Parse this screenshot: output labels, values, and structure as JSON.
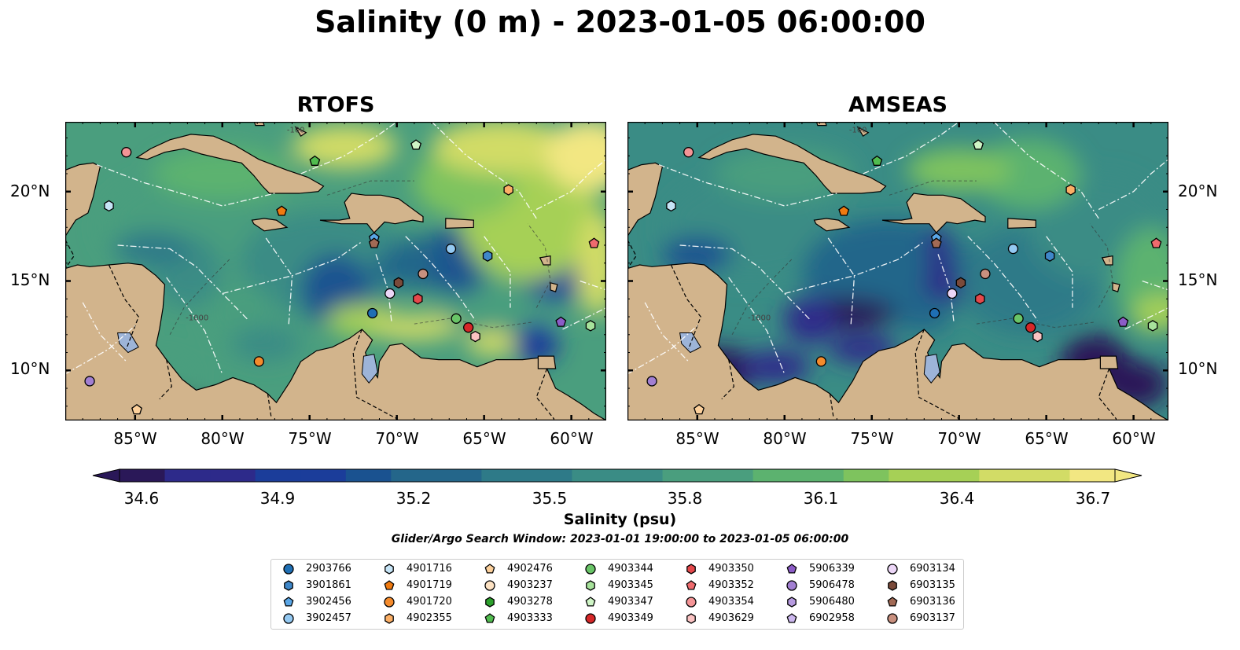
{
  "title": "Salinity (0 m) - 2023-01-05 06:00:00",
  "panels": [
    {
      "title": "RTOFS",
      "ocean_tint": "rtofs"
    },
    {
      "title": "AMSEAS",
      "ocean_tint": "amseas"
    }
  ],
  "map": {
    "lon_range": [
      -89,
      -58
    ],
    "lat_range": [
      7.2,
      23.9
    ],
    "lat_ticks": [
      "10°N",
      "15°N",
      "20°N"
    ],
    "lon_ticks": [
      "85°W",
      "80°W",
      "75°W",
      "70°W",
      "65°W",
      "60°W"
    ],
    "land_color": "#d2b48c",
    "lake_color": "#9db4d8",
    "bathymetry_labels": [
      "-100",
      "-1000"
    ]
  },
  "colorbar": {
    "label": "Salinity (psu)",
    "ticks": [
      "34.6",
      "34.9",
      "35.2",
      "35.5",
      "35.8",
      "36.1",
      "36.4",
      "36.7"
    ],
    "min": 34.6,
    "max": 36.7,
    "colormap": "haline",
    "colors": [
      "#2a1858",
      "#2d2a8a",
      "#1b3d9a",
      "#1a5290",
      "#24668a",
      "#2e7a88",
      "#3a8c85",
      "#4a9e7e",
      "#5cb26f",
      "#7ec35e",
      "#a6d056",
      "#d2dc66",
      "#f2e782"
    ]
  },
  "search_window": "Glider/Argo Search Window: 2023-01-01 19:00:00 to 2023-01-05 06:00:00",
  "legend": [
    {
      "id": "2903766",
      "shape": "circle",
      "color": "#1f6fb4"
    },
    {
      "id": "3901861",
      "shape": "hexagon",
      "color": "#3f87c9"
    },
    {
      "id": "3902456",
      "shape": "pentagon",
      "color": "#5aa6e6"
    },
    {
      "id": "3902457",
      "shape": "circle",
      "color": "#94c9f2"
    },
    {
      "id": "4901716",
      "shape": "hexagon",
      "color": "#c6e4f6"
    },
    {
      "id": "4901719",
      "shape": "pentagon",
      "color": "#f07a10"
    },
    {
      "id": "4901720",
      "shape": "circle",
      "color": "#f58b2c"
    },
    {
      "id": "4902355",
      "shape": "hexagon",
      "color": "#fbaf66"
    },
    {
      "id": "4902476",
      "shape": "pentagon",
      "color": "#fcd09b"
    },
    {
      "id": "4903237",
      "shape": "circle",
      "color": "#fde2c3"
    },
    {
      "id": "4903278",
      "shape": "hexagon",
      "color": "#2ca02c"
    },
    {
      "id": "4903333",
      "shape": "pentagon",
      "color": "#51bc4f"
    },
    {
      "id": "4903344",
      "shape": "circle",
      "color": "#69c467"
    },
    {
      "id": "4903345",
      "shape": "hexagon",
      "color": "#a7e29b"
    },
    {
      "id": "4903347",
      "shape": "pentagon",
      "color": "#cff5c6"
    },
    {
      "id": "4903349",
      "shape": "circle",
      "color": "#d62728"
    },
    {
      "id": "4903350",
      "shape": "hexagon",
      "color": "#e5484b"
    },
    {
      "id": "4903352",
      "shape": "pentagon",
      "color": "#ef6b6e"
    },
    {
      "id": "4903354",
      "shape": "circle",
      "color": "#f49496"
    },
    {
      "id": "4903629",
      "shape": "hexagon",
      "color": "#fbc3c3"
    },
    {
      "id": "5906339",
      "shape": "pentagon",
      "color": "#8c5cc7"
    },
    {
      "id": "5906478",
      "shape": "circle",
      "color": "#a27fd2"
    },
    {
      "id": "5906480",
      "shape": "hexagon",
      "color": "#b79be0"
    },
    {
      "id": "6902958",
      "shape": "pentagon",
      "color": "#cdb8ef"
    },
    {
      "id": "6903134",
      "shape": "circle",
      "color": "#ecd6f7"
    },
    {
      "id": "6903135",
      "shape": "hexagon",
      "color": "#7a4a3a"
    },
    {
      "id": "6903136",
      "shape": "pentagon",
      "color": "#a26a55"
    },
    {
      "id": "6903137",
      "shape": "circle",
      "color": "#c9907f"
    }
  ],
  "markers": [
    {
      "id": "4903354",
      "lon": -85.5,
      "lat": 22.2
    },
    {
      "id": "4901716",
      "lon": -86.5,
      "lat": 19.2
    },
    {
      "id": "4901719",
      "lon": -76.6,
      "lat": 18.9
    },
    {
      "id": "4903333",
      "lon": -74.7,
      "lat": 21.7
    },
    {
      "id": "4903347",
      "lon": -68.9,
      "lat": 22.6
    },
    {
      "id": "4902355",
      "lon": -63.6,
      "lat": 20.1
    },
    {
      "id": "3902456",
      "lon": -71.3,
      "lat": 17.4
    },
    {
      "id": "6903136",
      "lon": -71.3,
      "lat": 17.1
    },
    {
      "id": "3902457",
      "lon": -66.9,
      "lat": 16.8
    },
    {
      "id": "3901861",
      "lon": -64.8,
      "lat": 16.4
    },
    {
      "id": "4903352",
      "lon": -58.7,
      "lat": 17.1
    },
    {
      "id": "6903137",
      "lon": -68.5,
      "lat": 15.4
    },
    {
      "id": "6903135",
      "lon": -69.9,
      "lat": 14.9
    },
    {
      "id": "6903134",
      "lon": -70.4,
      "lat": 14.3
    },
    {
      "id": "4903350",
      "lon": -68.8,
      "lat": 14.0
    },
    {
      "id": "2903766",
      "lon": -71.4,
      "lat": 13.2
    },
    {
      "id": "4903344",
      "lon": -66.6,
      "lat": 12.9
    },
    {
      "id": "4903349",
      "lon": -65.9,
      "lat": 12.4
    },
    {
      "id": "4903629",
      "lon": -65.5,
      "lat": 11.9
    },
    {
      "id": "5906339",
      "lon": -60.6,
      "lat": 12.7
    },
    {
      "id": "4903345",
      "lon": -58.9,
      "lat": 12.5
    },
    {
      "id": "4901720",
      "lon": -77.9,
      "lat": 10.5
    },
    {
      "id": "5906478",
      "lon": -87.6,
      "lat": 9.4
    },
    {
      "id": "4902476",
      "lon": -84.9,
      "lat": 7.8
    }
  ]
}
